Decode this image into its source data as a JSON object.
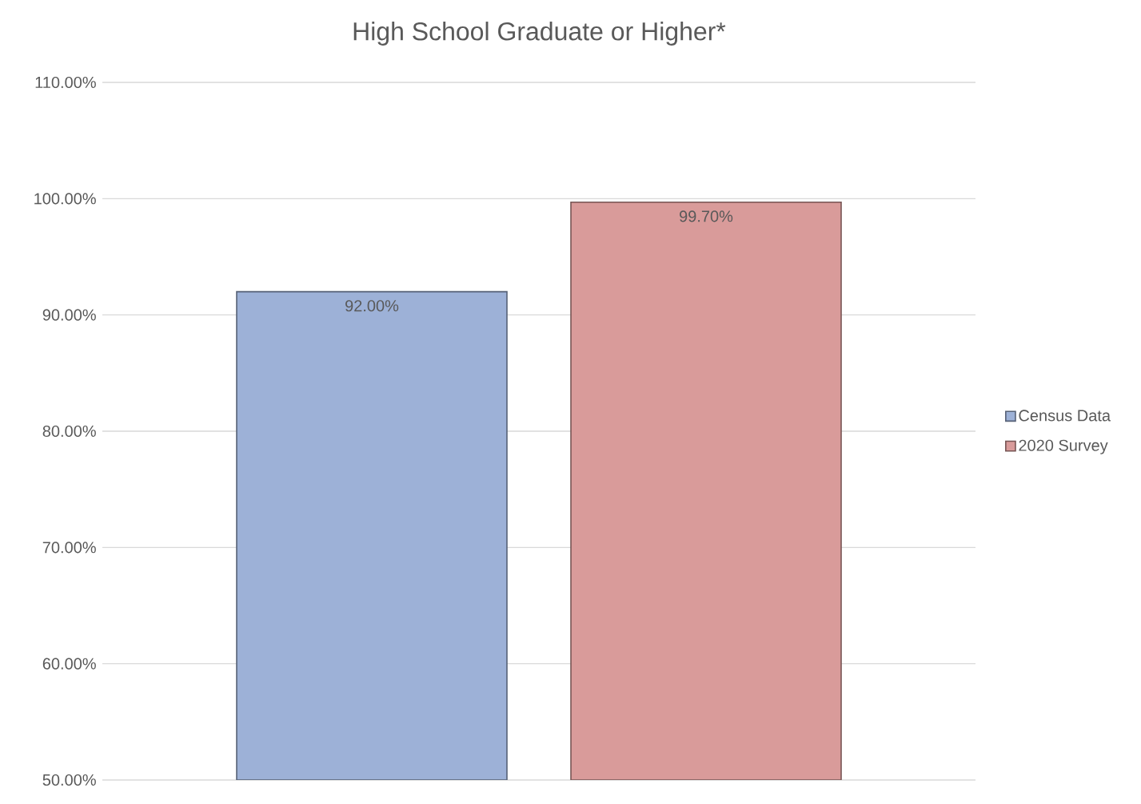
{
  "chart_data": {
    "type": "bar",
    "title": "High School Graduate or Higher*",
    "categories": [
      null
    ],
    "series": [
      {
        "name": "Census Data",
        "color": "#9db1d7",
        "values": [
          92.0
        ],
        "value_labels": [
          "92.00%"
        ]
      },
      {
        "name": "2020 Survey",
        "color": "#d99b9a",
        "values": [
          99.7
        ],
        "value_labels": [
          "99.70%"
        ]
      }
    ],
    "ylim": [
      50,
      110
    ],
    "yticks": [
      {
        "value": 50,
        "label": "50.00%"
      },
      {
        "value": 60,
        "label": "60.00%"
      },
      {
        "value": 70,
        "label": "70.00%"
      },
      {
        "value": 80,
        "label": "80.00%"
      },
      {
        "value": 90,
        "label": "90.00%"
      },
      {
        "value": 100,
        "label": "100.00%"
      },
      {
        "value": 110,
        "label": "110.00%"
      }
    ],
    "grid": "y",
    "legend": "right"
  }
}
